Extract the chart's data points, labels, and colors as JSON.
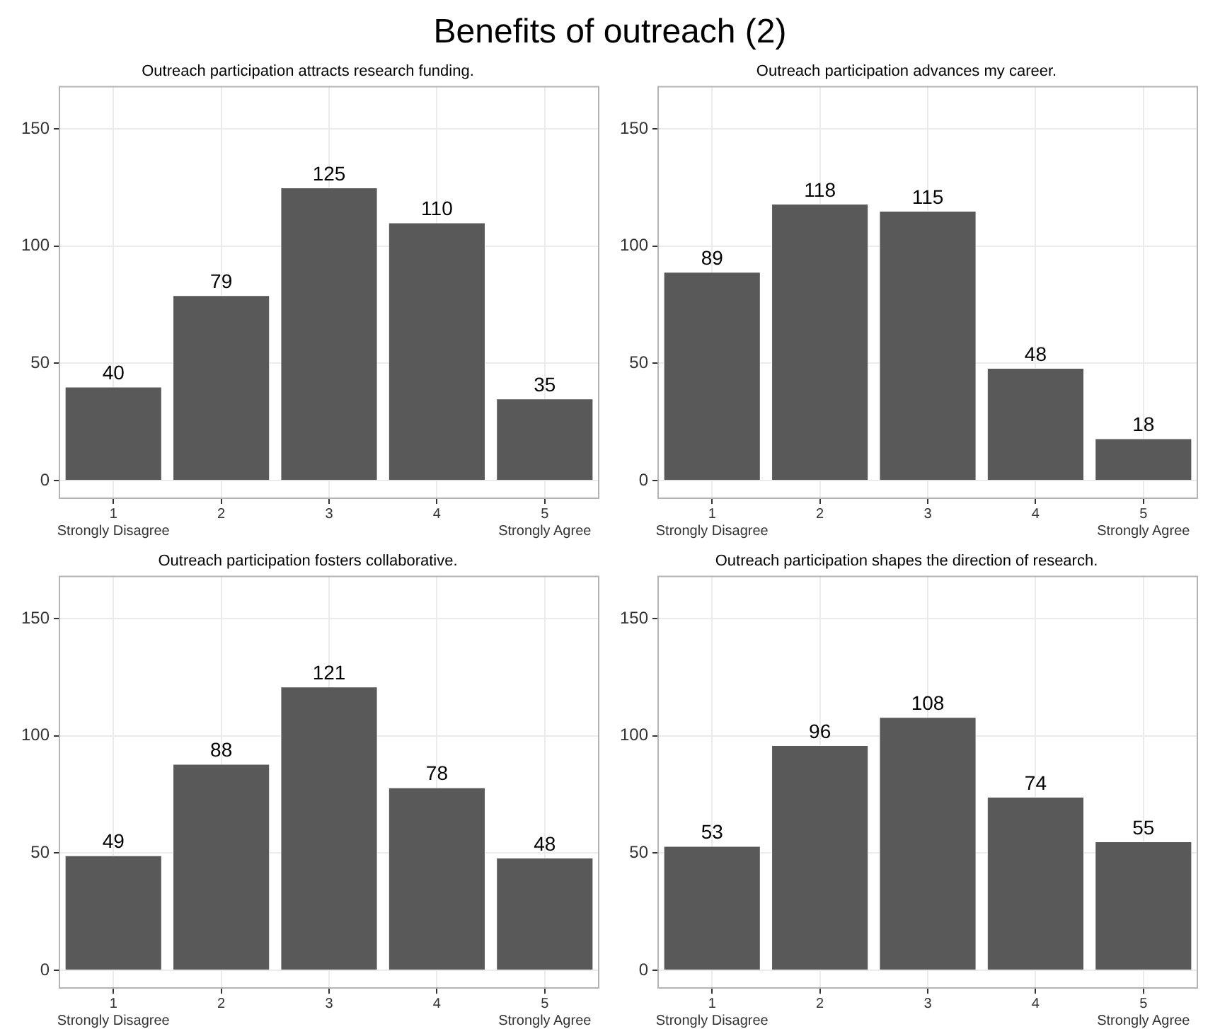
{
  "chart_data": [
    {
      "type": "bar",
      "title": "Benefits of outreach (2)",
      "subtitle": "Outreach participation attracts research funding.",
      "categories": [
        "1\nStrongly Disagree",
        "2",
        "3",
        "4",
        "5\nStrongly Agree"
      ],
      "values": [
        40,
        79,
        125,
        110,
        35
      ],
      "color": "#595959",
      "ylim": [
        -7.5,
        168
      ],
      "yticks": [
        0,
        50,
        100,
        150
      ],
      "grid": true,
      "data_labels": true
    },
    {
      "type": "bar",
      "subtitle": "Outreach participation advances my career.",
      "categories": [
        "1\nStrongly Disagree",
        "2",
        "3",
        "4",
        "5\nStrongly Agree"
      ],
      "values": [
        89,
        118,
        115,
        48,
        18
      ],
      "color": "#595959",
      "ylim": [
        -7.5,
        168
      ],
      "yticks": [
        0,
        50,
        100,
        150
      ],
      "grid": true,
      "data_labels": true
    },
    {
      "type": "bar",
      "subtitle": "Outreach participation fosters collaborative.",
      "categories": [
        "1\nStrongly Disagree",
        "2",
        "3",
        "4",
        "5\nStrongly Agree"
      ],
      "values": [
        49,
        88,
        121,
        78,
        48
      ],
      "color": "#595959",
      "ylim": [
        -7.5,
        168
      ],
      "yticks": [
        0,
        50,
        100,
        150
      ],
      "grid": true,
      "data_labels": true
    },
    {
      "type": "bar",
      "subtitle": "Outreach participation shapes the direction of research.",
      "categories": [
        "1\nStrongly Disagree",
        "2",
        "3",
        "4",
        "5\nStrongly Agree"
      ],
      "values": [
        53,
        96,
        108,
        74,
        55
      ],
      "color": "#595959",
      "ylim": [
        -7.5,
        168
      ],
      "yticks": [
        0,
        50,
        100,
        150
      ],
      "grid": true,
      "data_labels": true
    }
  ]
}
